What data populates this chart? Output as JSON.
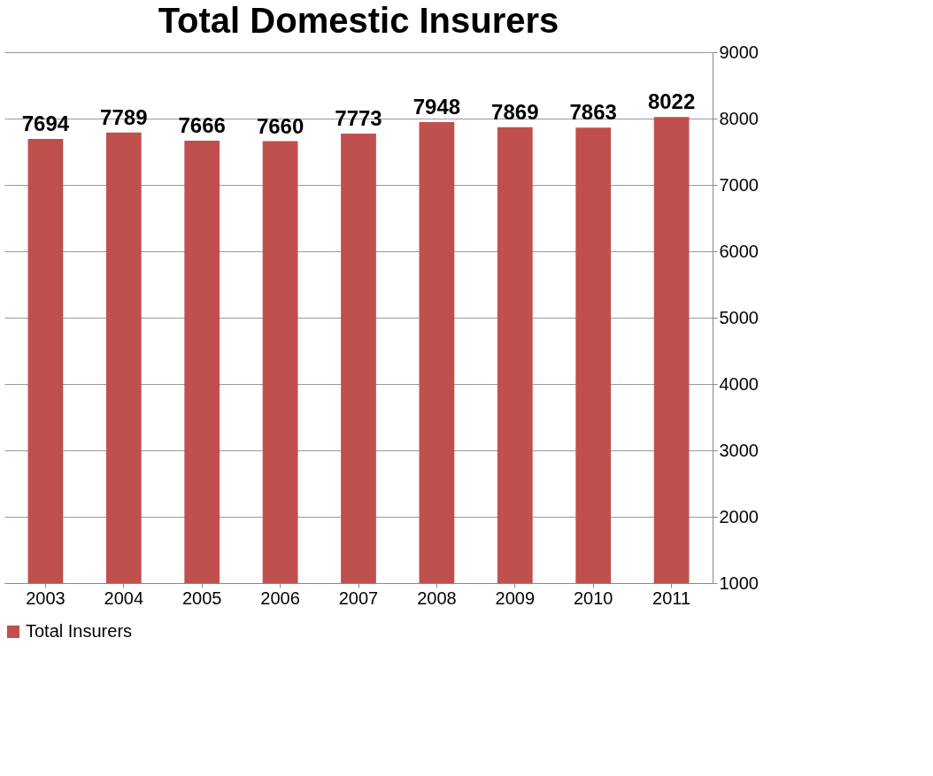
{
  "chart_data": {
    "type": "bar",
    "title": "Total Domestic Insurers",
    "categories": [
      "2003",
      "2004",
      "2005",
      "2006",
      "2007",
      "2008",
      "2009",
      "2010",
      "2011"
    ],
    "series": [
      {
        "name": "Total Insurers",
        "color": "#c0504d",
        "values": [
          7694,
          7789,
          7666,
          7660,
          7773,
          7948,
          7869,
          7863,
          8022
        ]
      }
    ],
    "ylim": [
      1000,
      9000
    ],
    "yticks": [
      1000,
      2000,
      3000,
      4000,
      5000,
      6000,
      7000,
      8000,
      9000
    ],
    "grid": "y",
    "legend": "bottom",
    "data_labels": true
  }
}
